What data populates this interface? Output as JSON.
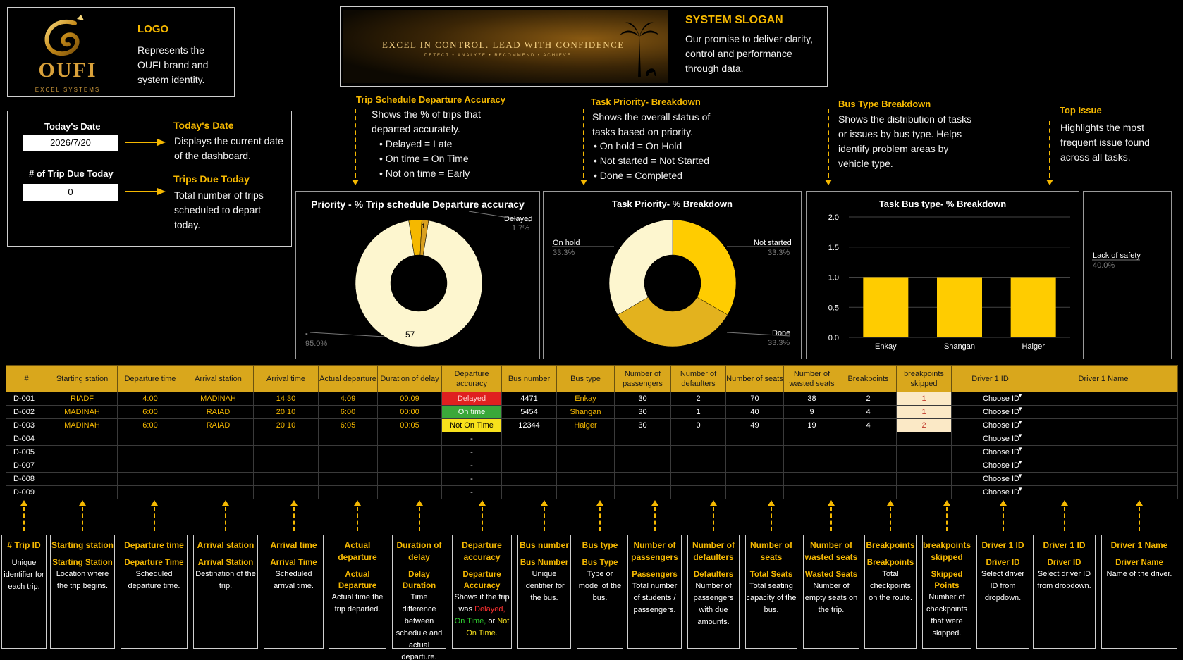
{
  "logo": {
    "mark_text": "OUFI",
    "mark_sub": "EXCEL SYSTEMS",
    "title": "LOGO",
    "desc": "Represents the OUFI brand and system identity."
  },
  "slogan": {
    "banner_main": "EXCEL IN CONTROL. LEAD WITH CONFIDENCE",
    "banner_sub": "DETECT • ANALYZE • RECOMMEND • ACHIEVE",
    "title": "SYSTEM SLOGAN",
    "desc": "Our promise to deliver clarity, control and performance through data."
  },
  "info": {
    "today_label": "Today's Date",
    "today_value": "2026/7/20",
    "trips_label": "# of Trip Due Today",
    "trips_value": "0",
    "today_title": "Today's Date",
    "today_desc": "Displays the current date of the dashboard.",
    "trips_title": "Trips Due Today",
    "trips_desc": "Total number of trips scheduled to depart today."
  },
  "notes": {
    "accuracy": {
      "title": "Trip Schedule Departure Accuracy",
      "desc": "Shows the % of trips that departed accurately.",
      "bullets": [
        "Delayed = Late",
        "On time = On Time",
        "Not on time = Early"
      ]
    },
    "priority": {
      "title": "Task Priority- Breakdown",
      "desc": "Shows the overall status of tasks based on priority.",
      "bullets": [
        "On hold = On Hold",
        "Not started = Not Started",
        "Done = Completed"
      ]
    },
    "bustype": {
      "title": "Bus Type Breakdown",
      "desc": "Shows the distribution of tasks or issues by bus type. Helps identify problem areas by vehicle type."
    },
    "topissue": {
      "title": "Top Issue",
      "desc": "Highlights the most frequent issue found across all tasks."
    }
  },
  "charts": {
    "accuracy": {
      "title": "Priority - % Trip schedule Departure accuracy",
      "label_delayed": "Delayed",
      "pct_delayed": "1.7%",
      "label_other": "-",
      "pct_other": "95.0%",
      "center_label": "57",
      "small_label": "1"
    },
    "priority": {
      "title": "Task Priority- % Breakdown",
      "label_onhold": "On hold",
      "pct_onhold": "33.3%",
      "label_notstarted": "Not started",
      "pct_notstarted": "33.3%",
      "label_done": "Done",
      "pct_done": "33.3%"
    },
    "bustype": {
      "title": "Task Bus type- % Breakdown"
    },
    "topissue": {
      "label": "Lack of safety",
      "pct": "40.0%"
    }
  },
  "chart_data": [
    {
      "type": "pie",
      "title": "Priority - % Trip schedule Departure accuracy",
      "slices": [
        {
          "label": "-",
          "value": 95.0
        },
        {
          "label": "Delayed",
          "value": 1.7
        },
        {
          "label": "",
          "value": 3.3
        }
      ]
    },
    {
      "type": "pie",
      "title": "Task Priority- % Breakdown",
      "slices": [
        {
          "label": "Not started",
          "value": 33.3
        },
        {
          "label": "Done",
          "value": 33.3
        },
        {
          "label": "On hold",
          "value": 33.3
        }
      ]
    },
    {
      "type": "bar",
      "title": "Task Bus type- % Breakdown",
      "categories": [
        "Enkay",
        "Shangan",
        "Haiger"
      ],
      "values": [
        1.0,
        1.0,
        1.0
      ],
      "ylim": [
        0,
        2.0
      ],
      "yticks": [
        "0.0",
        "0.5",
        "1.0",
        "1.5",
        "2.0"
      ]
    }
  ],
  "table": {
    "headers": [
      "#",
      "Starting station",
      "Departure time",
      "Arrival station",
      "Arrival time",
      "Actual departure",
      "Duration of delay",
      "Departure accuracy",
      "Bus number",
      "Bus type",
      "Number of passengers",
      "Number of defaulters",
      "Number of seats",
      "Number of wasted seats",
      "Breakpoints",
      "breakpoints skipped",
      "Driver 1 ID",
      "Driver 1 Name"
    ],
    "rows": [
      [
        "D-001",
        "RIADF",
        "4:00",
        "MADINAH",
        "14:30",
        "4:09",
        "00:09",
        "Delayed",
        "4471",
        "Enkay",
        "30",
        "2",
        "70",
        "38",
        "2",
        "1",
        "Choose ID",
        ""
      ],
      [
        "D-002",
        "MADINAH",
        "6:00",
        "RAIAD",
        "20:10",
        "6:00",
        "00:00",
        "On time",
        "5454",
        "Shangan",
        "30",
        "1",
        "40",
        "9",
        "4",
        "1",
        "Choose ID",
        ""
      ],
      [
        "D-003",
        "MADINAH",
        "6:00",
        "RAIAD",
        "20:10",
        "6:05",
        "00:05",
        "Not On Time",
        "12344",
        "Haiger",
        "30",
        "0",
        "49",
        "19",
        "4",
        "2",
        "Choose ID",
        ""
      ],
      [
        "D-004",
        "",
        "",
        "",
        "",
        "",
        "",
        "-",
        "",
        "",
        "",
        "",
        "",
        "",
        "",
        "",
        "Choose ID",
        ""
      ],
      [
        "D-005",
        "",
        "",
        "",
        "",
        "",
        "",
        "-",
        "",
        "",
        "",
        "",
        "",
        "",
        "",
        "",
        "Choose ID",
        ""
      ],
      [
        "D-007",
        "",
        "",
        "",
        "",
        "",
        "",
        "-",
        "",
        "",
        "",
        "",
        "",
        "",
        "",
        "",
        "Choose ID",
        ""
      ],
      [
        "D-008",
        "",
        "",
        "",
        "",
        "",
        "",
        "-",
        "",
        "",
        "",
        "",
        "",
        "",
        "",
        "",
        "Choose ID",
        ""
      ],
      [
        "D-009",
        "",
        "",
        "",
        "",
        "",
        "",
        "-",
        "",
        "",
        "",
        "",
        "",
        "",
        "",
        "",
        "Choose ID",
        ""
      ]
    ]
  },
  "legend": [
    {
      "title": "# Trip ID",
      "sub": "",
      "desc": "Unique identifier for each trip."
    },
    {
      "title": "Starting station",
      "sub": "Starting Station",
      "desc": "Location where the trip begins."
    },
    {
      "title": "Departure time",
      "sub": "Departure Time",
      "desc": "Scheduled departure time."
    },
    {
      "title": "Arrival station",
      "sub": "Arrival Station",
      "desc": "Destination of the trip."
    },
    {
      "title": "Arrival time",
      "sub": "Arrival Time",
      "desc": "Scheduled arrival time."
    },
    {
      "title": "Actual departure",
      "sub": "Actual Departure",
      "desc": "Actual time the trip departed."
    },
    {
      "title": "Duration of delay",
      "sub": "Delay Duration",
      "desc": "Time difference between schedule and actual departure."
    },
    {
      "title": "Departure accuracy",
      "sub": "Departure Accuracy",
      "desc_a": "Shows if the trip was",
      "desc_red": "Delayed,",
      "desc_grn": "On Time,",
      "desc_or": "or",
      "desc_yel": "Not On Time."
    },
    {
      "title": "Bus number",
      "sub": "Bus Number",
      "desc": "Unique identifier for the bus."
    },
    {
      "title": "Bus type",
      "sub": "Bus Type",
      "desc": "Type or model of the bus."
    },
    {
      "title": "Number of passengers",
      "sub": "Passengers",
      "desc": "Total number of students / passengers."
    },
    {
      "title": "Number of defaulters",
      "sub": "Defaulters",
      "desc": "Number of passengers with due amounts."
    },
    {
      "title": "Number of seats",
      "sub": "Total Seats",
      "desc": "Total seating capacity of the bus."
    },
    {
      "title": "Number of wasted seats",
      "sub": "Wasted Seats",
      "desc": "Number of empty seats on the trip."
    },
    {
      "title": "Breakpoints",
      "sub": "Breakpoints",
      "desc": "Total checkpoints on the route."
    },
    {
      "title": "breakpoints skipped",
      "sub": "Skipped Points",
      "desc": "Number of checkpoints that were skipped."
    },
    {
      "title": "Driver 1 ID",
      "sub": "Driver ID",
      "desc": "Select driver ID from dropdown."
    },
    {
      "title": "Driver 1 ID",
      "sub": "Driver ID",
      "desc": "Select driver ID from dropdown."
    },
    {
      "title": "Driver 1 Name",
      "sub": "Driver Name",
      "desc": "Name of the driver."
    }
  ],
  "colors": {
    "gold": "#f5b800",
    "pale": "#fdf6cf",
    "dark_gold": "#e3b21e",
    "bright_yellow": "#ffcc00"
  }
}
